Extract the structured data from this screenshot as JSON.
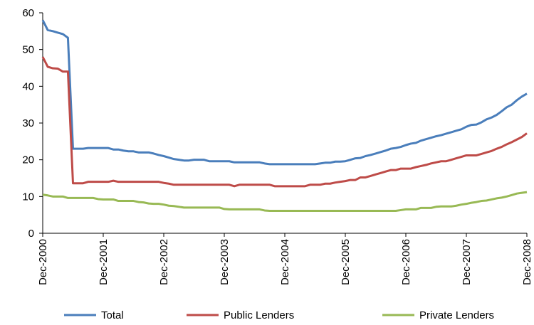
{
  "chart_data": {
    "type": "line",
    "categories": [
      "Dec-2000",
      null,
      null,
      null,
      null,
      null,
      null,
      null,
      null,
      null,
      null,
      null,
      "Dec-2001",
      null,
      null,
      null,
      null,
      null,
      null,
      null,
      null,
      null,
      null,
      null,
      "Dec-2002",
      null,
      null,
      null,
      null,
      null,
      null,
      null,
      null,
      null,
      null,
      null,
      "Dec-2003",
      null,
      null,
      null,
      null,
      null,
      null,
      null,
      null,
      null,
      null,
      null,
      "Dec-2004",
      null,
      null,
      null,
      null,
      null,
      null,
      null,
      null,
      null,
      null,
      null,
      "Dec-2005",
      null,
      null,
      null,
      null,
      null,
      null,
      null,
      null,
      null,
      null,
      null,
      "Dec-2006",
      null,
      null,
      null,
      null,
      null,
      null,
      null,
      null,
      null,
      null,
      null,
      "Dec-2007",
      null,
      null,
      null,
      null,
      null,
      null,
      null,
      null,
      null,
      null,
      null,
      "Dec-2008"
    ],
    "series": [
      {
        "name": "Total",
        "color": "#4a7ebb",
        "values": [
          58,
          55.3,
          55,
          54.6,
          54.2,
          53.2,
          23,
          23,
          23,
          23.2,
          23.2,
          23.2,
          23.2,
          23.2,
          22.8,
          22.8,
          22.5,
          22.3,
          22.3,
          22,
          22,
          22,
          21.7,
          21.3,
          21,
          20.6,
          20.2,
          20,
          19.8,
          19.8,
          20,
          20,
          20,
          19.6,
          19.6,
          19.6,
          19.6,
          19.6,
          19.3,
          19.3,
          19.3,
          19.3,
          19.3,
          19.3,
          19,
          18.8,
          18.8,
          18.8,
          18.8,
          18.8,
          18.8,
          18.8,
          18.8,
          18.8,
          18.8,
          19,
          19.2,
          19.2,
          19.5,
          19.5,
          19.6,
          20,
          20.4,
          20.5,
          21,
          21.3,
          21.7,
          22.1,
          22.5,
          23,
          23.2,
          23.5,
          24,
          24.4,
          24.6,
          25.2,
          25.6,
          26,
          26.4,
          26.7,
          27.1,
          27.5,
          27.9,
          28.3,
          29,
          29.5,
          29.6,
          30.2,
          31,
          31.5,
          32.2,
          33.2,
          34.3,
          35,
          36.2,
          37.2,
          38
        ]
      },
      {
        "name": "Public Lenders",
        "color": "#be4b48",
        "values": [
          48,
          45.3,
          44.9,
          44.8,
          44,
          44,
          13.6,
          13.6,
          13.6,
          14,
          14,
          14,
          14,
          14,
          14.3,
          14,
          14,
          14,
          14,
          14,
          14,
          14,
          14,
          14,
          13.7,
          13.5,
          13.2,
          13.2,
          13.2,
          13.2,
          13.2,
          13.2,
          13.2,
          13.2,
          13.2,
          13.2,
          13.2,
          13.2,
          12.8,
          13.2,
          13.2,
          13.2,
          13.2,
          13.2,
          13.2,
          13.2,
          12.8,
          12.8,
          12.8,
          12.8,
          12.8,
          12.8,
          12.8,
          13.2,
          13.2,
          13.2,
          13.5,
          13.5,
          13.8,
          14,
          14.2,
          14.5,
          14.5,
          15.2,
          15.2,
          15.6,
          16,
          16.4,
          16.8,
          17.2,
          17.2,
          17.6,
          17.6,
          17.6,
          18,
          18.3,
          18.6,
          19,
          19.3,
          19.6,
          19.6,
          20,
          20.4,
          20.8,
          21.2,
          21.2,
          21.2,
          21.6,
          22,
          22.4,
          23,
          23.5,
          24.2,
          24.8,
          25.5,
          26.2,
          27.2
        ]
      },
      {
        "name": "Private Lenders",
        "color": "#98b954",
        "values": [
          10.5,
          10.3,
          10,
          10,
          10,
          9.6,
          9.6,
          9.6,
          9.6,
          9.6,
          9.6,
          9.3,
          9.2,
          9.2,
          9.2,
          8.8,
          8.8,
          8.8,
          8.8,
          8.5,
          8.4,
          8.1,
          8,
          8,
          7.8,
          7.5,
          7.4,
          7.2,
          7,
          7,
          7,
          7,
          7,
          7,
          7,
          7,
          6.6,
          6.5,
          6.5,
          6.5,
          6.5,
          6.5,
          6.5,
          6.5,
          6.2,
          6.1,
          6.1,
          6.1,
          6.1,
          6.1,
          6.1,
          6.1,
          6.1,
          6.1,
          6.1,
          6.1,
          6.1,
          6.1,
          6.1,
          6.1,
          6.1,
          6.1,
          6.1,
          6.1,
          6.1,
          6.1,
          6.1,
          6.1,
          6.1,
          6.1,
          6.1,
          6.3,
          6.5,
          6.5,
          6.5,
          6.9,
          6.9,
          6.9,
          7.2,
          7.3,
          7.3,
          7.3,
          7.5,
          7.8,
          8,
          8.3,
          8.5,
          8.8,
          8.9,
          9.2,
          9.5,
          9.7,
          10,
          10.4,
          10.8,
          11,
          11.2
        ]
      }
    ],
    "ylim": [
      0,
      60
    ],
    "yticks": [
      0,
      10,
      20,
      30,
      40,
      50,
      60
    ]
  }
}
